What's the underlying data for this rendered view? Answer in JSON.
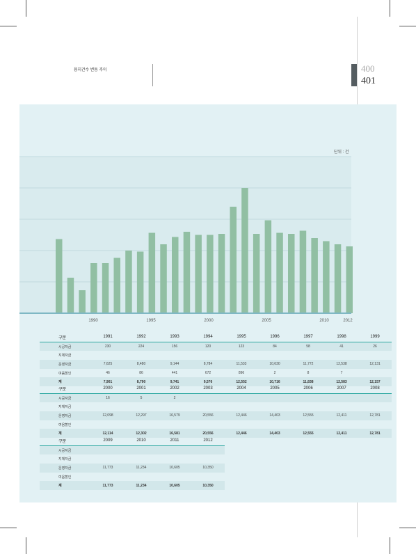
{
  "header": {
    "caption": "융지건수 변동 추이"
  },
  "page_numbers": [
    "400",
    "401"
  ],
  "colors": {
    "bar": "#91bfa3",
    "accent": "#2aa7a0",
    "panel": "#e2f1f4",
    "plot": "#d9ebee"
  },
  "chart_data": {
    "type": "bar",
    "unit_label": "단위 : 건",
    "x_tick_labels": [
      "1990",
      "1995",
      "2000",
      "2005",
      "2010",
      "2012"
    ],
    "values": [
      7100,
      3400,
      2200,
      4800,
      4800,
      5300,
      6000,
      5900,
      7700,
      6600,
      7300,
      7800,
      7500,
      7500,
      7600,
      10200,
      12000,
      7600,
      8900,
      7700,
      7600,
      7900,
      7200,
      6900,
      6600,
      6400
    ],
    "ylim": [
      0,
      15000
    ],
    "grid": true,
    "legend": false
  },
  "tables": [
    {
      "header": [
        "구분",
        "1991",
        "1992",
        "1993",
        "1994",
        "1995",
        "1996",
        "1997",
        "1998",
        "1999"
      ],
      "rows": [
        [
          "시공자금",
          "230",
          "224",
          "156",
          "120",
          "123",
          "84",
          "58",
          "41",
          "26"
        ],
        [
          "지체자금",
          "",
          "",
          "",
          "",
          "",
          "",
          "",
          "",
          ""
        ],
        [
          "운영자금",
          "7,625",
          "8,480",
          "9,144",
          "8,784",
          "11,533",
          "10,630",
          "11,772",
          "12,538",
          "12,131"
        ],
        [
          "여음할인",
          "46",
          "86",
          "441",
          "672",
          "896",
          "2",
          "8",
          "7",
          ""
        ],
        [
          "계",
          "7,901",
          "8,790",
          "9,741",
          "9,576",
          "12,552",
          "10,716",
          "11,838",
          "12,583",
          "12,157"
        ]
      ]
    },
    {
      "header": [
        "구분",
        "2000",
        "2001",
        "2002",
        "2003",
        "2004",
        "2005",
        "2006",
        "2007",
        "2008"
      ],
      "rows": [
        [
          "시공자금",
          "16",
          "5",
          "2",
          "",
          "",
          "",
          "",
          "",
          ""
        ],
        [
          "지체자금",
          "",
          "",
          "",
          "",
          "",
          "",
          "",
          "",
          ""
        ],
        [
          "운영자금",
          "12,098",
          "12,297",
          "16,579",
          "20,556",
          "12,446",
          "14,403",
          "12,555",
          "12,411",
          "12,781"
        ],
        [
          "여음할인",
          "",
          "",
          "",
          "",
          "",
          "",
          "",
          "",
          ""
        ],
        [
          "계",
          "12,114",
          "12,302",
          "16,581",
          "20,556",
          "12,446",
          "14,403",
          "12,555",
          "12,411",
          "12,781"
        ]
      ]
    },
    {
      "header": [
        "구분",
        "2009",
        "2010",
        "2011",
        "2012"
      ],
      "rows": [
        [
          "시공자금",
          "",
          "",
          "",
          ""
        ],
        [
          "지체자금",
          "",
          "",
          "",
          ""
        ],
        [
          "운영자금",
          "11,773",
          "11,234",
          "10,605",
          "10,350"
        ],
        [
          "여음할인",
          "",
          "",
          "",
          ""
        ],
        [
          "계",
          "11,773",
          "11,234",
          "10,605",
          "10,350"
        ]
      ]
    }
  ]
}
